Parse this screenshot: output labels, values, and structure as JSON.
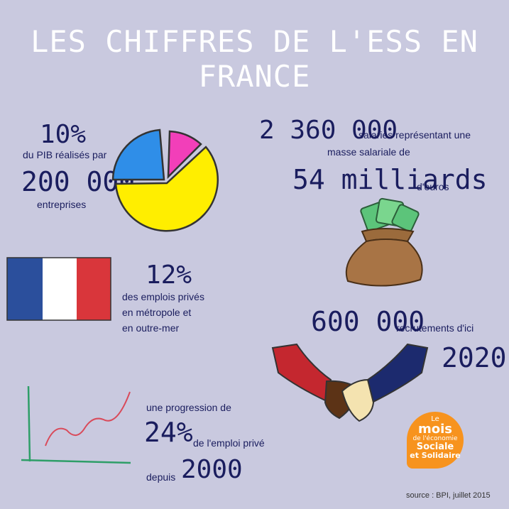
{
  "title": "LES CHIFFRES DE L'ESS EN FRANCE",
  "pib": {
    "percent": "10%",
    "line1": "du PIB réalisés par",
    "count": "200 000",
    "line2": "entreprises"
  },
  "salaries": {
    "count": "2 360 000",
    "line1": "salariés représentant une",
    "line2": "masse salariale de",
    "amount": "54 milliards",
    "unit": "d'euros"
  },
  "emplois": {
    "percent": "12%",
    "lines": [
      "des emplois privés",
      "en métropole et",
      "en outre-mer"
    ]
  },
  "recrutements": {
    "count": "600 000",
    "label": "recrutements d'ici",
    "year": "2020"
  },
  "progression": {
    "line1": "une progression de",
    "percent": "24%",
    "line2": "de l'emploi privé",
    "since": "depuis",
    "year": "2000"
  },
  "logo": {
    "line1": "Le",
    "line2": "mois",
    "line3": "de l'économie",
    "line4": "Sociale",
    "line5": "et Solidaire"
  },
  "source": "source : BPI, juillet 2015",
  "colors": {
    "background": "#c9c9df",
    "navy": "#1a1d5e",
    "pie_yellow": "#ffee00",
    "pie_blue": "#2f8ee8",
    "pie_pink": "#f23fb9",
    "flag_blue": "#2b4f9c",
    "flag_red": "#d9363b",
    "logo_orange": "#f7931e",
    "chart_green": "#2e9e68",
    "chart_red": "#d94a5a"
  }
}
